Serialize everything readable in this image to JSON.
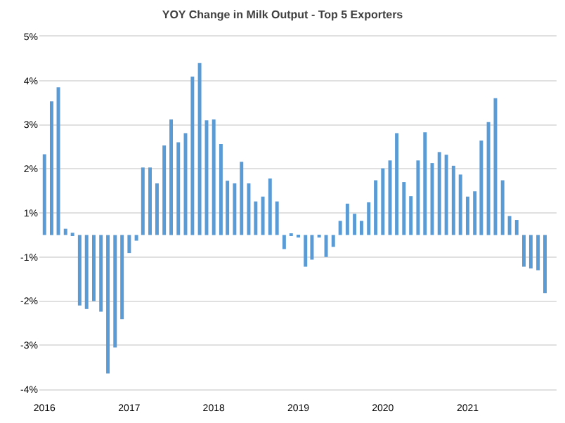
{
  "chart_data": {
    "type": "bar",
    "title": "YOY Change in Milk Output - Top 5 Exporters",
    "x": [
      "2016-01",
      "2016-02",
      "2016-03",
      "2016-04",
      "2016-05",
      "2016-06",
      "2016-07",
      "2016-08",
      "2016-09",
      "2016-10",
      "2016-11",
      "2016-12",
      "2017-01",
      "2017-02",
      "2017-03",
      "2017-04",
      "2017-05",
      "2017-06",
      "2017-07",
      "2017-08",
      "2017-09",
      "2017-10",
      "2017-11",
      "2017-12",
      "2018-01",
      "2018-02",
      "2018-03",
      "2018-04",
      "2018-05",
      "2018-06",
      "2018-07",
      "2018-08",
      "2018-09",
      "2018-10",
      "2018-11",
      "2018-12",
      "2019-01",
      "2019-02",
      "2019-03",
      "2019-04",
      "2019-05",
      "2019-06",
      "2019-07",
      "2019-08",
      "2019-09",
      "2019-10",
      "2019-11",
      "2019-12",
      "2020-01",
      "2020-02",
      "2020-03",
      "2020-04",
      "2020-05",
      "2020-06",
      "2020-07",
      "2020-08",
      "2020-09",
      "2020-10",
      "2020-11",
      "2020-12",
      "2021-01",
      "2021-02",
      "2021-03",
      "2021-04",
      "2021-05",
      "2021-06",
      "2021-07",
      "2021-08",
      "2021-09",
      "2021-10",
      "2021-11",
      "2021-12"
    ],
    "series": [
      {
        "color": "#5b9bd5",
        "values": [
          1.83,
          3.03,
          3.35,
          0.14,
          0.05,
          -1.6,
          -1.68,
          -1.5,
          -1.74,
          -3.14,
          -2.55,
          -1.91,
          -0.41,
          -0.13,
          1.53,
          1.53,
          1.17,
          2.03,
          2.62,
          2.1,
          2.31,
          3.59,
          3.9,
          2.6,
          2.62,
          2.06,
          1.23,
          1.17,
          1.66,
          1.17,
          0.76,
          0.87,
          1.28,
          0.76,
          -0.32,
          0.03,
          -0.04,
          -0.72,
          -0.56,
          -0.05,
          -0.5,
          -0.27,
          0.32,
          0.71,
          0.48,
          0.32,
          0.74,
          1.24,
          1.51,
          1.69,
          2.31,
          1.2,
          0.88,
          1.69,
          2.33,
          1.63,
          1.88,
          1.82,
          1.57,
          1.37,
          0.87,
          0.99,
          2.14,
          2.56,
          3.1,
          1.24,
          0.43,
          0.34,
          -0.72,
          -0.76,
          -0.8,
          -1.32
        ]
      }
    ],
    "ylim": [
      -3.5,
      4.5
    ],
    "yticks": [
      {
        "value": 4.5,
        "label": "5%"
      },
      {
        "value": 3.5,
        "label": "4%"
      },
      {
        "value": 2.5,
        "label": "3%"
      },
      {
        "value": 1.5,
        "label": "2%"
      },
      {
        "value": 0.5,
        "label": "1%"
      },
      {
        "value": -0.5,
        "label": "-1%"
      },
      {
        "value": -1.5,
        "label": "-2%"
      },
      {
        "value": -2.5,
        "label": "-3%"
      },
      {
        "value": -3.5,
        "label": "-4%"
      }
    ],
    "xlim": [
      "2015-12-10",
      "2022-01-20"
    ],
    "xticks": [
      {
        "value": "2016-01",
        "label": "2016"
      },
      {
        "value": "2017-01",
        "label": "2017"
      },
      {
        "value": "2018-01",
        "label": "2018"
      },
      {
        "value": "2019-01",
        "label": "2019"
      },
      {
        "value": "2020-01",
        "label": "2020"
      },
      {
        "value": "2021-01",
        "label": "2021"
      }
    ],
    "grid": "y"
  }
}
